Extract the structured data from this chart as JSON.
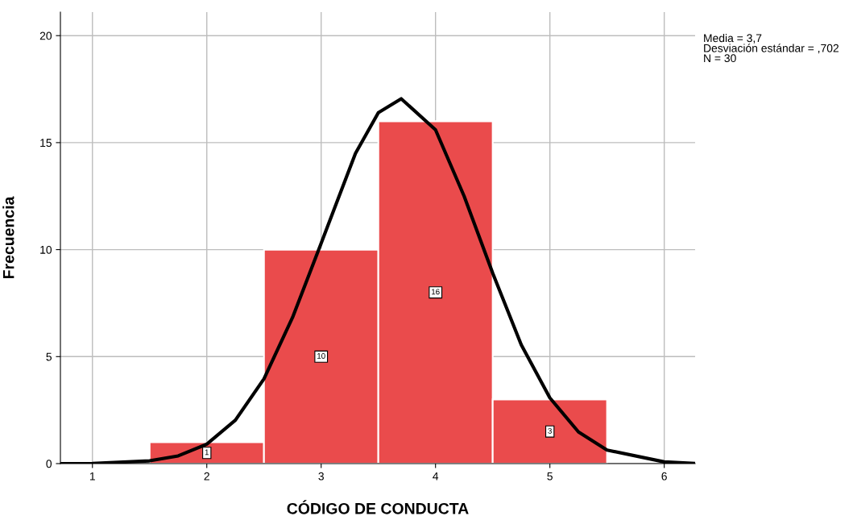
{
  "chart_data": {
    "type": "histogram",
    "xlabel": "CÓDIGO DE CONDUCTA",
    "ylabel": "Frecuencia",
    "bins": [
      1.5,
      2.5,
      3.5,
      4.5,
      5.5
    ],
    "values": [
      1,
      10,
      16,
      3
    ],
    "color": "#ea4b4c",
    "value_labels": [
      "1",
      "10",
      "16",
      "3"
    ],
    "series": [
      {
        "type": "line",
        "color": "#000000",
        "x": [
          0.72,
          1.0,
          1.5,
          1.75,
          2.0,
          2.25,
          2.5,
          2.75,
          3.0,
          3.3,
          3.5,
          3.7,
          4.0,
          4.25,
          4.5,
          4.75,
          5.0,
          5.25,
          5.5,
          6.0,
          6.27
        ],
        "values": [
          0.0,
          0.01,
          0.13,
          0.36,
          0.91,
          2.03,
          3.96,
          6.83,
          10.3,
          14.5,
          16.4,
          17.05,
          15.6,
          12.5,
          8.9,
          5.55,
          3.07,
          1.48,
          0.63,
          0.08,
          0.01
        ]
      }
    ],
    "annotations": [
      "Media = 3,7\nDesviación estándar = ,702\nN = 30"
    ],
    "xlim": [
      0.72,
      6.27
    ],
    "xticks": [
      1,
      2,
      3,
      4,
      5,
      6
    ],
    "ylim": [
      0,
      21.1
    ],
    "yticks": [
      0,
      5,
      10,
      15,
      20
    ],
    "grid": true,
    "legend": false,
    "marker": "none",
    "line_style": "solid"
  }
}
